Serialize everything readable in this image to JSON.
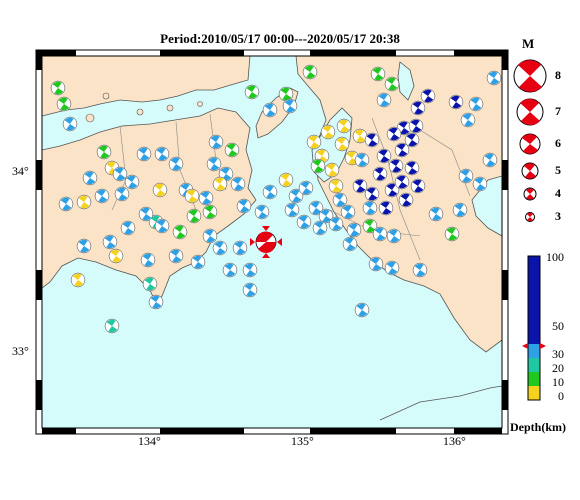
{
  "title": "Period:2010/05/17 00:00---2020/05/17 20:38",
  "map": {
    "lon_ticks": [
      "134°",
      "135°",
      "136°"
    ],
    "lat_ticks": [
      "34°",
      "33°"
    ],
    "colors": {
      "sea": "#d6fbfb",
      "land": "#fae3c6",
      "coast": "#555555",
      "main_event": "#e60012"
    },
    "main_event": {
      "lon": 134.77,
      "lat": 33.6,
      "magnitude": 4.2,
      "depth_km": 42
    }
  },
  "magnitude_legend": {
    "title": "M",
    "levels": [
      "8",
      "7",
      "6",
      "5",
      "4",
      "3"
    ]
  },
  "depth_legend": {
    "title": "Depth(km)",
    "ticks": [
      "100",
      "50",
      "30",
      "20",
      "10",
      "0"
    ],
    "bands": [
      {
        "from": 0,
        "to": 10,
        "color": "#f5d21e"
      },
      {
        "from": 10,
        "to": 20,
        "color": "#1ec81e"
      },
      {
        "from": 20,
        "to": 30,
        "color": "#1ec8a0"
      },
      {
        "from": 30,
        "to": 50,
        "color": "#2da0e6"
      },
      {
        "from": 50,
        "to": 100,
        "color": "#0a14aa"
      }
    ],
    "marker_depth": 42
  }
}
